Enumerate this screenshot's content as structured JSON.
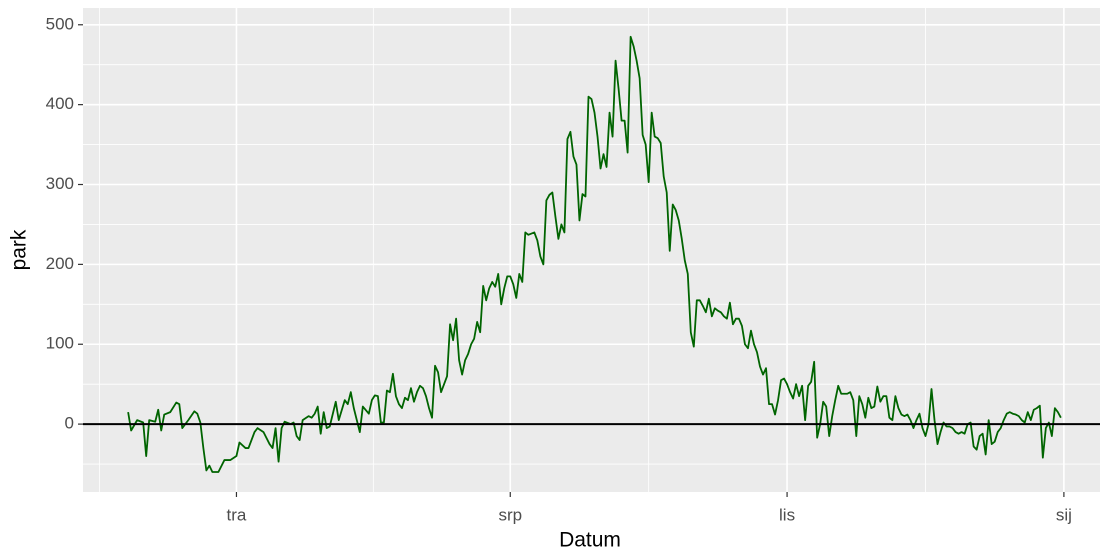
{
  "chart_data": {
    "type": "line",
    "x_label": "Datum",
    "y_label": "park",
    "color": "#006400",
    "x": [
      -36,
      -35,
      -33,
      -31,
      -30,
      -29,
      -27,
      -26,
      -25,
      -24,
      -22,
      -20,
      -19,
      -18,
      -16,
      -14,
      -13,
      -12,
      -11,
      -10,
      -9,
      -8,
      -6,
      -4,
      -2,
      0,
      1,
      3,
      4,
      6,
      7,
      9,
      11,
      12,
      13,
      14,
      15,
      16,
      18,
      19,
      20,
      21,
      22,
      24,
      25,
      26,
      27,
      28,
      29,
      30,
      31,
      33,
      34,
      36,
      37,
      38,
      39,
      41,
      42,
      44,
      45,
      46,
      47,
      48,
      49,
      50,
      51,
      52,
      53,
      54,
      55,
      56,
      57,
      58,
      59,
      60,
      61,
      62,
      63,
      64,
      65,
      66,
      67,
      68,
      69,
      70,
      71,
      72,
      73,
      74,
      75,
      76,
      77,
      78,
      79,
      80,
      81,
      82,
      83,
      84,
      85,
      86,
      87,
      88,
      89,
      90,
      91,
      92,
      93,
      94,
      95,
      96,
      97,
      99,
      100,
      101,
      102,
      103,
      104,
      105,
      106,
      107,
      108,
      109,
      110,
      111,
      112,
      113,
      114,
      115,
      116,
      117,
      118,
      119,
      120,
      121,
      122,
      123,
      124,
      125,
      126,
      127,
      128,
      129,
      130,
      131,
      132,
      133,
      134,
      135,
      136,
      137,
      138,
      139,
      140,
      141,
      142,
      143,
      144,
      145,
      146,
      147,
      148,
      149,
      150,
      151,
      152,
      153,
      154,
      155,
      156,
      157,
      158,
      159,
      160,
      161,
      162,
      163,
      164,
      165,
      166,
      167,
      168,
      169,
      170,
      171,
      172,
      173,
      174,
      175,
      176,
      177,
      178,
      179,
      180,
      181,
      182,
      183,
      184,
      185,
      186,
      187,
      188,
      189,
      190,
      191,
      192,
      193,
      194,
      195,
      196,
      197,
      198,
      199,
      200,
      201,
      202,
      203,
      204,
      205,
      206,
      207,
      208,
      209,
      210,
      211,
      212,
      213,
      214,
      215,
      216,
      217,
      218,
      219,
      220,
      221,
      222,
      223,
      224,
      225,
      226,
      227,
      228,
      229,
      230,
      231,
      232,
      233,
      234,
      235,
      236,
      237,
      238,
      239,
      240,
      241,
      242,
      243,
      244,
      245,
      246,
      247,
      248,
      249,
      250,
      251,
      252,
      253,
      254,
      255,
      256,
      257,
      258,
      259,
      260,
      261,
      262,
      263,
      264,
      265,
      266,
      267,
      268,
      269,
      270,
      271,
      272,
      273,
      274
    ],
    "values": [
      15,
      -8,
      5,
      2,
      -40,
      5,
      3,
      18,
      -8,
      12,
      15,
      27,
      25,
      -5,
      5,
      16,
      13,
      2,
      -30,
      -58,
      -52,
      -60,
      -60,
      -45,
      -45,
      -40,
      -23,
      -30,
      -30,
      -10,
      -5,
      -10,
      -25,
      -30,
      -5,
      -47,
      -5,
      3,
      0,
      2,
      -15,
      -20,
      5,
      10,
      8,
      13,
      22,
      -12,
      15,
      -5,
      -3,
      28,
      5,
      30,
      25,
      40,
      20,
      -10,
      22,
      13,
      30,
      36,
      35,
      2,
      2,
      42,
      40,
      63,
      35,
      25,
      20,
      33,
      30,
      45,
      28,
      40,
      48,
      45,
      35,
      20,
      8,
      73,
      65,
      40,
      50,
      60,
      125,
      105,
      132,
      80,
      62,
      80,
      88,
      100,
      107,
      128,
      115,
      173,
      155,
      170,
      178,
      172,
      188,
      150,
      170,
      185,
      185,
      175,
      158,
      188,
      178,
      240,
      237,
      240,
      230,
      210,
      200,
      280,
      287,
      290,
      260,
      232,
      250,
      240,
      357,
      366,
      335,
      325,
      255,
      288,
      285,
      410,
      407,
      390,
      360,
      320,
      338,
      322,
      390,
      360,
      455,
      420,
      380,
      380,
      340,
      485,
      473,
      455,
      433,
      362,
      350,
      303,
      390,
      360,
      358,
      352,
      310,
      290,
      217,
      275,
      268,
      255,
      232,
      205,
      188,
      115,
      97,
      155,
      155,
      148,
      140,
      157,
      135,
      145,
      142,
      140,
      135,
      132,
      152,
      125,
      132,
      132,
      123,
      100,
      95,
      117,
      100,
      90,
      72,
      62,
      70,
      25,
      25,
      12,
      30,
      55,
      57,
      50,
      40,
      32,
      50,
      35,
      48,
      5,
      48,
      53,
      78,
      -17,
      0,
      28,
      22,
      -15,
      10,
      30,
      48,
      38,
      38,
      38,
      40,
      30,
      -15,
      35,
      25,
      8,
      33,
      20,
      22,
      47,
      28,
      35,
      35,
      8,
      5,
      35,
      20,
      12,
      10,
      12,
      5,
      -5,
      5,
      13,
      -5,
      -15,
      0,
      44,
      5,
      -25,
      -10,
      2,
      -3,
      -3,
      -5,
      -10,
      -12,
      -10,
      -12,
      0,
      2,
      -28,
      -32,
      -15,
      -12,
      -38,
      5,
      -25,
      -22,
      -10,
      -5,
      5,
      13,
      15,
      13,
      12,
      10,
      5,
      2,
      15,
      5,
      18,
      20,
      23,
      -42,
      -5,
      2,
      -15,
      20,
      15,
      8
    ],
    "xlim": [
      -51,
      287
    ],
    "ylim": [
      -85,
      521
    ],
    "xticks": [
      {
        "value": 0,
        "label": "tra"
      },
      {
        "value": 91,
        "label": "srp"
      },
      {
        "value": 183,
        "label": "lis"
      },
      {
        "value": 275,
        "label": "sij"
      }
    ],
    "yticks": [
      0,
      100,
      200,
      300,
      400,
      500
    ],
    "hline": 0,
    "grid": true,
    "minor_grid": true
  }
}
